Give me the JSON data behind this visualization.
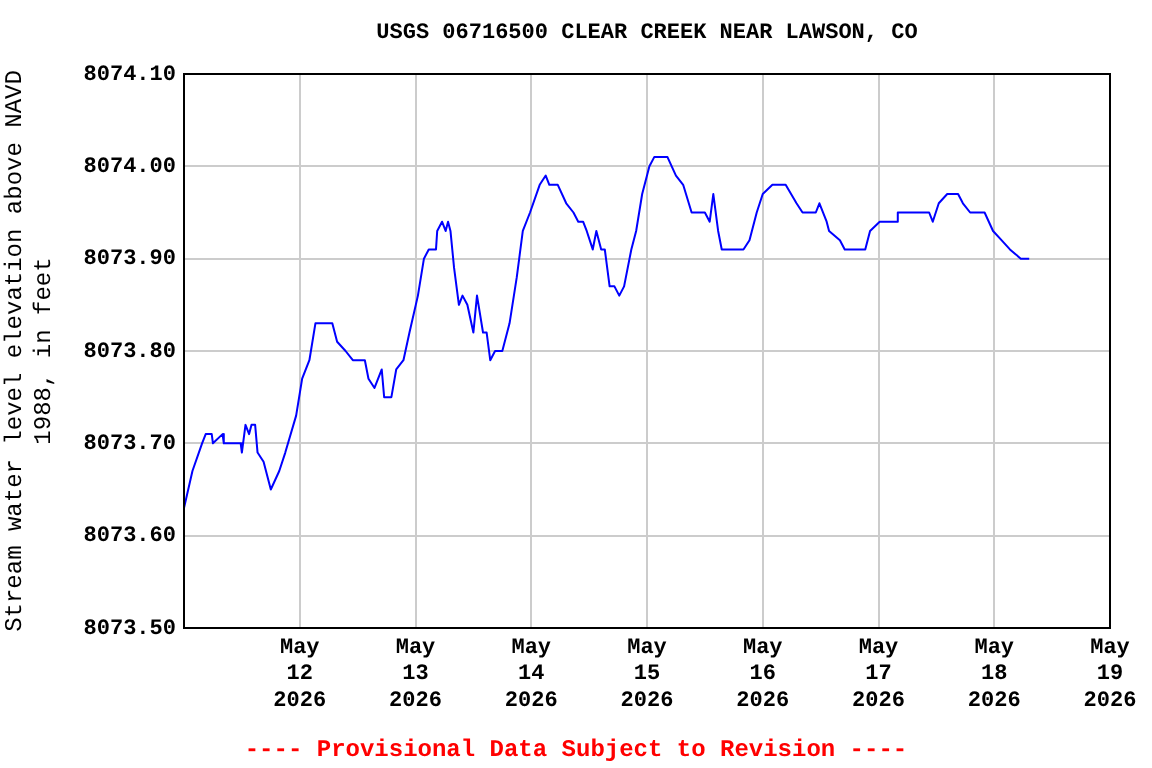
{
  "chart_data": {
    "type": "line",
    "title": "USGS 06716500 CLEAR CREEK NEAR LAWSON, CO",
    "ylabel": "Stream water level elevation above NAVD 1988, in feet",
    "annotations": [
      "---- Provisional Data Subject to Revision ----"
    ],
    "xlim": [
      "2026-05-11",
      "2026-05-19"
    ],
    "xticks": [
      {
        "value": "2026-05-12",
        "label": "May 12 2026"
      },
      {
        "value": "2026-05-13",
        "label": "May 13 2026"
      },
      {
        "value": "2026-05-14",
        "label": "May 14 2026"
      },
      {
        "value": "2026-05-15",
        "label": "May 15 2026"
      },
      {
        "value": "2026-05-16",
        "label": "May 16 2026"
      },
      {
        "value": "2026-05-17",
        "label": "May 17 2026"
      },
      {
        "value": "2026-05-18",
        "label": "May 18 2026"
      },
      {
        "value": "2026-05-19",
        "label": "May 19 2026"
      }
    ],
    "ylim": [
      8073.5,
      8074.1
    ],
    "yticks": [
      {
        "value": 8073.5,
        "label": "8073.50"
      },
      {
        "value": 8073.6,
        "label": "8073.60"
      },
      {
        "value": 8073.7,
        "label": "8073.70"
      },
      {
        "value": 8073.8,
        "label": "8073.80"
      },
      {
        "value": 8073.9,
        "label": "8073.90"
      },
      {
        "value": 8074.0,
        "label": "8074.00"
      },
      {
        "value": 8074.1,
        "label": "8074.10"
      }
    ],
    "grid": true,
    "legend": false,
    "x": [
      "2026-05-11T00:00",
      "2026-05-11T01:45",
      "2026-05-11T03:45",
      "2026-05-11T04:30",
      "2026-05-11T05:45",
      "2026-05-11T06:00",
      "2026-05-11T08:00",
      "2026-05-11T08:15",
      "2026-05-11T11:45",
      "2026-05-11T12:00",
      "2026-05-11T12:45",
      "2026-05-11T13:30",
      "2026-05-11T14:00",
      "2026-05-11T14:45",
      "2026-05-11T15:15",
      "2026-05-11T16:30",
      "2026-05-11T18:00",
      "2026-05-11T19:45",
      "2026-05-11T21:00",
      "2026-05-11T23:15",
      "2026-05-12T00:30",
      "2026-05-12T02:00",
      "2026-05-12T03:15",
      "2026-05-12T06:45",
      "2026-05-12T07:45",
      "2026-05-12T09:30",
      "2026-05-12T11:00",
      "2026-05-12T13:30",
      "2026-05-12T14:15",
      "2026-05-12T15:30",
      "2026-05-12T17:00",
      "2026-05-12T17:30",
      "2026-05-12T19:00",
      "2026-05-12T20:00",
      "2026-05-12T21:30",
      "2026-05-12T22:45",
      "2026-05-13T00:30",
      "2026-05-13T01:45",
      "2026-05-13T02:45",
      "2026-05-13T04:15",
      "2026-05-13T04:30",
      "2026-05-13T05:30",
      "2026-05-13T06:15",
      "2026-05-13T06:45",
      "2026-05-13T07:15",
      "2026-05-13T08:00",
      "2026-05-13T09:00",
      "2026-05-13T09:45",
      "2026-05-13T10:45",
      "2026-05-13T12:00",
      "2026-05-13T12:45",
      "2026-05-13T14:00",
      "2026-05-13T14:45",
      "2026-05-13T15:30",
      "2026-05-13T16:30",
      "2026-05-13T18:00",
      "2026-05-13T19:30",
      "2026-05-13T21:00",
      "2026-05-13T22:15",
      "2026-05-13T23:45",
      "2026-05-14T01:45",
      "2026-05-14T03:00",
      "2026-05-14T03:45",
      "2026-05-14T05:30",
      "2026-05-14T07:15",
      "2026-05-14T08:45",
      "2026-05-14T09:45",
      "2026-05-14T10:45",
      "2026-05-14T11:30",
      "2026-05-14T12:45",
      "2026-05-14T13:30",
      "2026-05-14T14:30",
      "2026-05-14T15:15",
      "2026-05-14T16:15",
      "2026-05-14T17:15",
      "2026-05-14T18:15",
      "2026-05-14T19:15",
      "2026-05-14T20:45",
      "2026-05-14T21:45",
      "2026-05-14T23:00",
      "2026-05-15T00:30",
      "2026-05-15T01:30",
      "2026-05-15T04:15",
      "2026-05-15T06:00",
      "2026-05-15T07:30",
      "2026-05-15T09:15",
      "2026-05-15T12:00",
      "2026-05-15T13:00",
      "2026-05-15T13:45",
      "2026-05-15T14:45",
      "2026-05-15T15:30",
      "2026-05-15T20:00",
      "2026-05-15T21:15",
      "2026-05-15T22:45",
      "2026-05-16T00:00",
      "2026-05-16T02:00",
      "2026-05-16T04:45",
      "2026-05-16T07:00",
      "2026-05-16T08:15",
      "2026-05-16T11:00",
      "2026-05-16T11:45",
      "2026-05-16T13:15",
      "2026-05-16T13:45",
      "2026-05-16T16:00",
      "2026-05-16T17:00",
      "2026-05-16T21:15",
      "2026-05-16T22:15",
      "2026-05-17T00:15",
      "2026-05-17T03:45",
      "2026-05-17T04:00",
      "2026-05-17T10:30",
      "2026-05-17T11:15",
      "2026-05-17T12:30",
      "2026-05-17T14:15",
      "2026-05-17T16:30",
      "2026-05-17T17:30",
      "2026-05-17T19:00",
      "2026-05-17T22:00",
      "2026-05-17T23:45",
      "2026-05-18T01:30",
      "2026-05-18T03:15",
      "2026-05-18T05:30",
      "2026-05-18T07:15"
    ],
    "series": [
      {
        "color": "#0000ff",
        "values": [
          8073.63,
          8073.67,
          8073.7,
          8073.71,
          8073.71,
          8073.7,
          8073.71,
          8073.7,
          8073.7,
          8073.69,
          8073.72,
          8073.71,
          8073.72,
          8073.72,
          8073.69,
          8073.68,
          8073.65,
          8073.67,
          8073.69,
          8073.73,
          8073.77,
          8073.79,
          8073.83,
          8073.83,
          8073.81,
          8073.8,
          8073.79,
          8073.79,
          8073.77,
          8073.76,
          8073.78,
          8073.75,
          8073.75,
          8073.78,
          8073.79,
          8073.82,
          8073.86,
          8073.9,
          8073.91,
          8073.91,
          8073.93,
          8073.94,
          8073.93,
          8073.94,
          8073.93,
          8073.89,
          8073.85,
          8073.86,
          8073.85,
          8073.82,
          8073.86,
          8073.82,
          8073.82,
          8073.79,
          8073.8,
          8073.8,
          8073.83,
          8073.88,
          8073.93,
          8073.95,
          8073.98,
          8073.99,
          8073.98,
          8073.98,
          8073.96,
          8073.95,
          8073.94,
          8073.94,
          8073.93,
          8073.91,
          8073.93,
          8073.91,
          8073.91,
          8073.87,
          8073.87,
          8073.86,
          8073.87,
          8073.91,
          8073.93,
          8073.97,
          8074.0,
          8074.01,
          8074.01,
          8073.99,
          8073.98,
          8073.95,
          8073.95,
          8073.94,
          8073.97,
          8073.93,
          8073.91,
          8073.91,
          8073.92,
          8073.95,
          8073.97,
          8073.98,
          8073.98,
          8073.96,
          8073.95,
          8073.95,
          8073.96,
          8073.94,
          8073.93,
          8073.92,
          8073.91,
          8073.91,
          8073.93,
          8073.94,
          8073.94,
          8073.95,
          8073.95,
          8073.94,
          8073.96,
          8073.97,
          8073.97,
          8073.96,
          8073.95,
          8073.95,
          8073.93,
          8073.92,
          8073.91,
          8073.9,
          8073.9
        ]
      }
    ]
  }
}
